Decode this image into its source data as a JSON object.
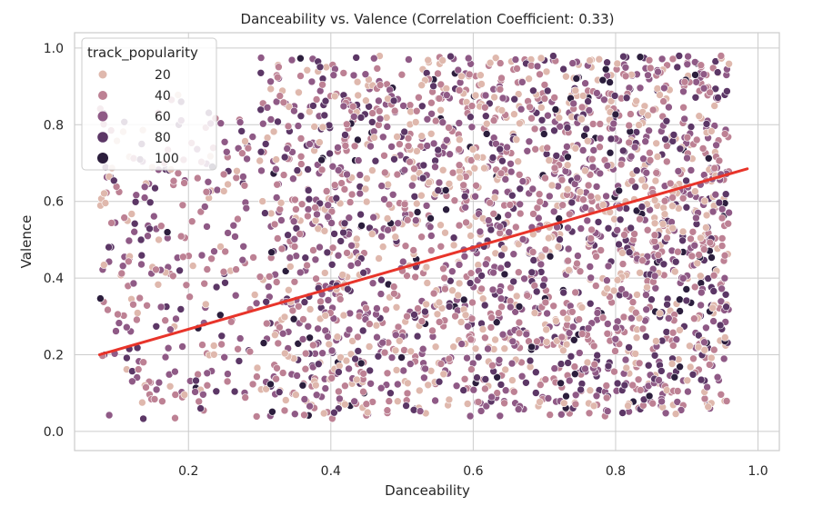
{
  "chart_data": {
    "type": "scatter",
    "title": "Danceability vs. Valence (Correlation Coefficient: 0.33)",
    "xlabel": "Danceability",
    "ylabel": "Valence",
    "xlim": [
      0.04,
      1.03
    ],
    "ylim": [
      -0.05,
      1.04
    ],
    "x_ticks": [
      0.2,
      0.4,
      0.6,
      0.8,
      1.0
    ],
    "x_tick_labels": [
      "0.2",
      "0.4",
      "0.6",
      "0.8",
      "1.0"
    ],
    "y_ticks": [
      0.0,
      0.2,
      0.4,
      0.6,
      0.8,
      1.0
    ],
    "y_tick_labels": [
      "0.0",
      "0.2",
      "0.4",
      "0.6",
      "0.8",
      "1.0"
    ],
    "grid": true,
    "legend": {
      "title": "track_popularity",
      "placement": "top-left",
      "entries": [
        {
          "label": "20",
          "value": 20,
          "color": "#dfb8ad"
        },
        {
          "label": "40",
          "value": 40,
          "color": "#bd8194"
        },
        {
          "label": "60",
          "value": 60,
          "color": "#8f5a86"
        },
        {
          "label": "80",
          "value": 80,
          "color": "#5c3766"
        },
        {
          "label": "100",
          "value": 100,
          "color": "#2c1e3d"
        }
      ]
    },
    "regression_line": {
      "color": "#e8342a",
      "x": [
        0.075,
        0.985
      ],
      "y": [
        0.2,
        0.685
      ]
    },
    "point_cloud": {
      "description_of_distribution": "dense rectangular band",
      "x_range": [
        0.075,
        0.985
      ],
      "y_range": [
        0.03,
        0.99
      ],
      "dense_x_range": [
        0.3,
        0.96
      ],
      "dense_y_range": [
        0.04,
        0.98
      ],
      "approx_count": 7500
    }
  },
  "colors": {
    "background": "#ffffff",
    "grid": "#cccccc",
    "spine": "#cccccc",
    "text": "#262626"
  }
}
